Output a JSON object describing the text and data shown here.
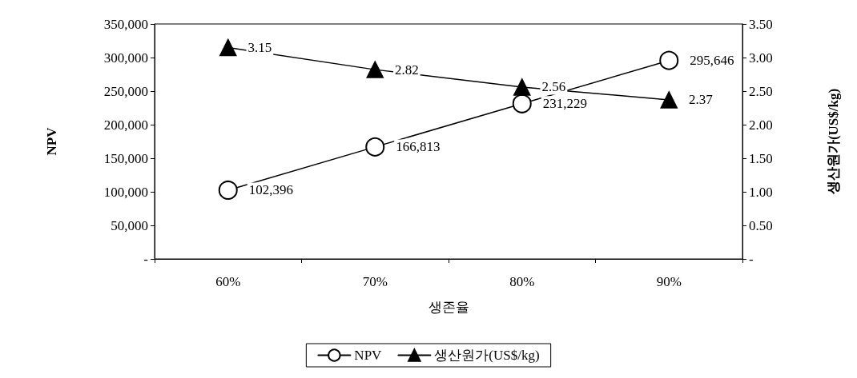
{
  "chart_data": {
    "type": "line",
    "xlabel": "생존율",
    "ylabel": "NPV",
    "y2label": "생산원가(US$/kg)",
    "categories": [
      "60%",
      "70%",
      "80%",
      "90%"
    ],
    "series": [
      {
        "name": "NPV",
        "color": "#000000",
        "marker": "circle",
        "values": [
          102396,
          166813,
          231229,
          295646
        ],
        "value_labels": [
          "102,396",
          "166,813",
          "231,229",
          "295,646"
        ]
      },
      {
        "name": "생산원가(US$/kg)",
        "color": "#000000",
        "marker": "triangle",
        "axis": "y2",
        "values": [
          3.15,
          2.82,
          2.56,
          2.37
        ],
        "value_labels": [
          "3.15",
          "2.82",
          "2.56",
          "2.37"
        ]
      }
    ],
    "ylim": [
      0,
      350000
    ],
    "yticks": [
      {
        "value": 0,
        "label": "-"
      },
      {
        "value": 50000,
        "label": "50,000"
      },
      {
        "value": 100000,
        "label": "100,000"
      },
      {
        "value": 150000,
        "label": "150,000"
      },
      {
        "value": 200000,
        "label": "200,000"
      },
      {
        "value": 250000,
        "label": "250,000"
      },
      {
        "value": 300000,
        "label": "300,000"
      },
      {
        "value": 350000,
        "label": "350,000"
      }
    ],
    "y2lim": [
      0,
      3.5
    ],
    "y2ticks": [
      {
        "value": 0,
        "label": "-"
      },
      {
        "value": 0.5,
        "label": "0.50"
      },
      {
        "value": 1,
        "label": "1.00"
      },
      {
        "value": 1.5,
        "label": "1.50"
      },
      {
        "value": 2,
        "label": "2.00"
      },
      {
        "value": 2.5,
        "label": "2.50"
      },
      {
        "value": 3,
        "label": "3.00"
      },
      {
        "value": 3.5,
        "label": "3.50"
      }
    ],
    "grid": false,
    "legend": "bottom",
    "line_style": "solid"
  }
}
